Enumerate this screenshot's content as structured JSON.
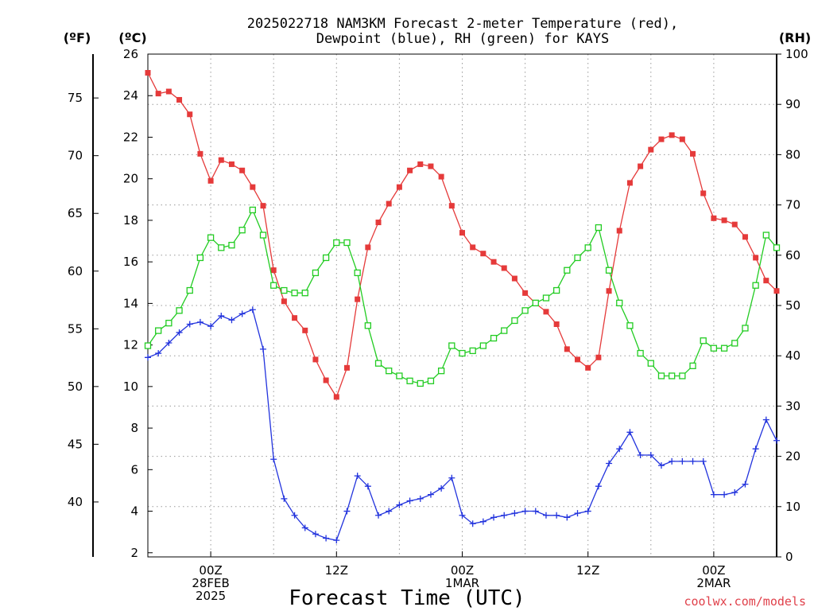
{
  "chart_data": {
    "type": "line",
    "title": [
      "2025022718 NAM3KM Forecast 2-meter Temperature (red),",
      "Dewpoint (blue), RH (green) for KAYS"
    ],
    "xlabel": "Forecast Time (UTC)",
    "credit": "coolwx.com/models",
    "units": {
      "fahrenheit": "(ºF)",
      "celsius": "(ºC)",
      "rh": "(RH)"
    },
    "x_ticks": [
      {
        "hour": 6,
        "lines": [
          "00Z",
          "28FEB",
          "2025"
        ]
      },
      {
        "hour": 18,
        "lines": [
          "12Z"
        ]
      },
      {
        "hour": 30,
        "lines": [
          "00Z",
          "1MAR"
        ]
      },
      {
        "hour": 42,
        "lines": [
          "12Z"
        ]
      },
      {
        "hour": 54,
        "lines": [
          "00Z",
          "2MAR"
        ]
      }
    ],
    "xlim": [
      0,
      60
    ],
    "ylim_c": [
      1.8,
      26
    ],
    "ylim_rh": [
      0,
      100
    ],
    "yticks_c": [
      "2",
      "4",
      "6",
      "8",
      "10",
      "12",
      "14",
      "16",
      "18",
      "20",
      "22",
      "24",
      "26"
    ],
    "yticks_f": [
      "40",
      "45",
      "50",
      "55",
      "60",
      "65",
      "70",
      "75"
    ],
    "yticks_rh": [
      "0",
      "10",
      "20",
      "30",
      "40",
      "50",
      "60",
      "70",
      "80",
      "90",
      "100"
    ],
    "grid": true,
    "colors": {
      "temperature": "#e53a3a",
      "dewpoint": "#2233dd",
      "rh": "#22cc22"
    },
    "series": [
      {
        "name": "Temperature",
        "units": "°C",
        "hours_from_start": [
          0,
          1,
          2,
          3,
          4,
          5,
          6,
          7,
          8,
          9,
          10,
          11,
          12,
          13,
          14,
          15,
          16,
          17,
          18,
          19,
          20,
          21,
          22,
          23,
          24,
          25,
          26,
          27,
          28,
          29,
          30,
          31,
          32,
          33,
          34,
          35,
          36,
          37,
          38,
          39,
          40,
          41,
          42,
          43,
          44,
          45,
          46,
          47,
          48,
          49,
          50,
          51,
          52,
          53,
          54,
          55,
          56,
          57,
          58,
          59,
          60
        ],
        "values": [
          25.1,
          24.1,
          24.2,
          23.8,
          23.1,
          21.2,
          19.9,
          20.9,
          20.7,
          20.4,
          19.6,
          18.7,
          15.6,
          14.1,
          13.3,
          12.7,
          11.3,
          10.3,
          9.5,
          10.9,
          14.2,
          16.7,
          17.9,
          18.8,
          19.6,
          20.4,
          20.7,
          20.6,
          20.1,
          18.7,
          17.4,
          16.7,
          16.4,
          16.0,
          15.7,
          15.2,
          14.5,
          14.0,
          13.6,
          13.0,
          11.8,
          11.3,
          10.9,
          11.4,
          14.6,
          17.5,
          19.8,
          20.6,
          21.4,
          21.9,
          22.1,
          21.9,
          21.2,
          19.3,
          18.1,
          18.0,
          17.8,
          17.2,
          16.2,
          15.1,
          14.6
        ]
      },
      {
        "name": "Dewpoint",
        "units": "°C",
        "hours_from_start": [
          0,
          1,
          2,
          3,
          4,
          5,
          6,
          7,
          8,
          9,
          10,
          11,
          12,
          13,
          14,
          15,
          16,
          17,
          18,
          19,
          20,
          21,
          22,
          23,
          24,
          25,
          26,
          27,
          28,
          29,
          30,
          31,
          32,
          33,
          34,
          35,
          36,
          37,
          38,
          39,
          40,
          41,
          42,
          43,
          44,
          45,
          46,
          47,
          48,
          49,
          50,
          51,
          52,
          53,
          54,
          55,
          56,
          57,
          58,
          59,
          60
        ],
        "values": [
          11.4,
          11.6,
          12.1,
          12.6,
          13.0,
          13.1,
          12.9,
          13.4,
          13.2,
          13.5,
          13.7,
          11.8,
          6.5,
          4.6,
          3.8,
          3.2,
          2.9,
          2.7,
          2.6,
          4.0,
          5.7,
          5.2,
          3.8,
          4.0,
          4.3,
          4.5,
          4.6,
          4.8,
          5.1,
          5.6,
          3.8,
          3.4,
          3.5,
          3.7,
          3.8,
          3.9,
          4.0,
          4.0,
          3.8,
          3.8,
          3.7,
          3.9,
          4.0,
          5.2,
          6.3,
          7.0,
          7.8,
          6.7,
          6.7,
          6.2,
          6.4,
          6.4,
          6.4,
          6.4,
          4.8,
          4.8,
          4.9,
          5.3,
          7.0,
          8.4,
          7.4
        ]
      },
      {
        "name": "RH",
        "units": "%",
        "hours_from_start": [
          0,
          1,
          2,
          3,
          4,
          5,
          6,
          7,
          8,
          9,
          10,
          11,
          12,
          13,
          14,
          15,
          16,
          17,
          18,
          19,
          20,
          21,
          22,
          23,
          24,
          25,
          26,
          27,
          28,
          29,
          30,
          31,
          32,
          33,
          34,
          35,
          36,
          37,
          38,
          39,
          40,
          41,
          42,
          43,
          44,
          45,
          46,
          47,
          48,
          49,
          50,
          51,
          52,
          53,
          54,
          55,
          56,
          57,
          58,
          59,
          60
        ],
        "values": [
          42,
          45,
          46.5,
          49,
          53,
          59.5,
          63.5,
          61.5,
          62,
          65,
          69,
          64,
          54,
          53,
          52.5,
          52.5,
          56.5,
          59.5,
          62.5,
          62.5,
          56.5,
          46,
          38.5,
          37,
          36,
          35,
          34.5,
          35,
          37,
          42,
          40.5,
          41,
          42,
          43.5,
          45,
          47,
          49,
          50.5,
          51.5,
          53,
          57,
          59.5,
          61.5,
          65.5,
          57,
          50.5,
          46,
          40.5,
          38.5,
          36,
          36,
          36,
          38,
          43,
          41.5,
          41.5,
          42.5,
          45.5,
          54,
          64,
          61.5
        ]
      }
    ]
  }
}
